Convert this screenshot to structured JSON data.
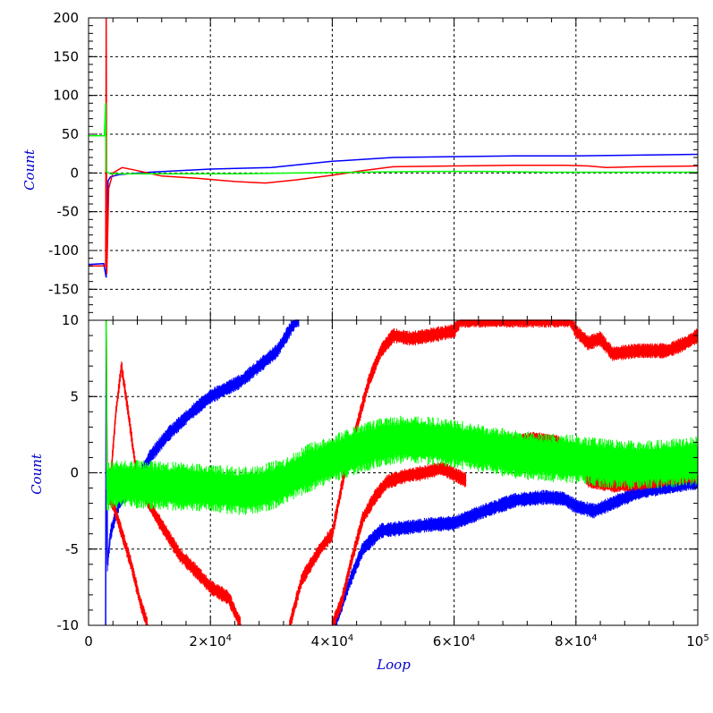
{
  "chart_data": [
    {
      "type": "line",
      "panel": "top",
      "ylabel": "Count",
      "xlabel": "",
      "xlim": [
        0,
        100000
      ],
      "ylim": [
        -190,
        200
      ],
      "yticks": [
        200,
        150,
        100,
        50,
        0,
        -50,
        -100,
        -150
      ],
      "ytick_labels": [
        "200",
        "150",
        "100",
        "50",
        "0",
        "-50",
        "-100",
        "-150"
      ],
      "grid": true,
      "series": [
        {
          "color": "#0000ff",
          "points": [
            [
              0,
              -118
            ],
            [
              2500,
              -117
            ],
            [
              2900,
              -135
            ],
            [
              3200,
              -10
            ],
            [
              3600,
              -5
            ],
            [
              5000,
              -2
            ],
            [
              10000,
              1
            ],
            [
              20000,
              5
            ],
            [
              30000,
              7
            ],
            [
              40000,
              15
            ],
            [
              50000,
              20
            ],
            [
              60000,
              21
            ],
            [
              70000,
              22
            ],
            [
              80000,
              22
            ],
            [
              100000,
              24
            ]
          ]
        },
        {
          "color": "#ff0000",
          "points": [
            [
              0,
              -120
            ],
            [
              2800,
              -120
            ],
            [
              2900,
              200
            ],
            [
              3000,
              -130
            ],
            [
              3300,
              -20
            ],
            [
              4000,
              0
            ],
            [
              5500,
              7
            ],
            [
              8000,
              3
            ],
            [
              12000,
              -4
            ],
            [
              18000,
              -7
            ],
            [
              24000,
              -11
            ],
            [
              29000,
              -13
            ],
            [
              34000,
              -9
            ],
            [
              40000,
              -3
            ],
            [
              45000,
              3
            ],
            [
              50000,
              8
            ],
            [
              60000,
              9
            ],
            [
              70000,
              10
            ],
            [
              78000,
              10
            ],
            [
              82000,
              9
            ],
            [
              85000,
              7
            ],
            [
              90000,
              8
            ],
            [
              100000,
              9
            ]
          ]
        },
        {
          "color": "#00ff00",
          "points": [
            [
              0,
              48
            ],
            [
              2600,
              48
            ],
            [
              2800,
              90
            ],
            [
              2900,
              2
            ],
            [
              3500,
              -1
            ],
            [
              8000,
              -1
            ],
            [
              15000,
              -1
            ],
            [
              25000,
              -1
            ],
            [
              35000,
              0
            ],
            [
              45000,
              1
            ],
            [
              55000,
              2
            ],
            [
              65000,
              2
            ],
            [
              75000,
              1
            ],
            [
              85000,
              1
            ],
            [
              100000,
              1
            ]
          ]
        }
      ]
    },
    {
      "type": "line",
      "panel": "bottom",
      "ylabel": "Count",
      "xlabel": "Loop",
      "xlim": [
        0,
        100000
      ],
      "ylim": [
        -10,
        10
      ],
      "yticks": [
        10,
        5,
        0,
        -5,
        -10
      ],
      "ytick_labels": [
        "10",
        "5",
        "0",
        "-5",
        "-10"
      ],
      "xticks": [
        0,
        20000,
        40000,
        60000,
        80000,
        100000
      ],
      "xtick_labels": [
        {
          "base": "0",
          "exp": ""
        },
        {
          "base": "2×10",
          "exp": "4"
        },
        {
          "base": "4×10",
          "exp": "4"
        },
        {
          "base": "6×10",
          "exp": "4"
        },
        {
          "base": "8×10",
          "exp": "4"
        },
        {
          "base": "10",
          "exp": "5"
        }
      ],
      "grid": true,
      "series": [
        {
          "color": "#0000ff",
          "band": 0.5,
          "points": [
            [
              2800,
              -10
            ],
            [
              2900,
              10
            ],
            [
              3100,
              -6
            ],
            [
              3600,
              -4
            ],
            [
              5000,
              -2
            ],
            [
              8000,
              -0.5
            ],
            [
              10000,
              1
            ],
            [
              13000,
              2.5
            ],
            [
              17000,
              4
            ],
            [
              20000,
              5
            ],
            [
              25000,
              6
            ],
            [
              28000,
              7
            ],
            [
              31000,
              8
            ],
            [
              34000,
              10
            ],
            [
              34600,
              10
            ]
          ]
        },
        {
          "color": "#0000ff",
          "band": 0.5,
          "points": [
            [
              40400,
              -10
            ],
            [
              43000,
              -7
            ],
            [
              45000,
              -5
            ],
            [
              48000,
              -3.8
            ],
            [
              52000,
              -3.6
            ],
            [
              56000,
              -3.4
            ],
            [
              60000,
              -3.3
            ],
            [
              65000,
              -2.5
            ],
            [
              70000,
              -1.8
            ],
            [
              75000,
              -1.6
            ],
            [
              78000,
              -1.7
            ],
            [
              80000,
              -2.2
            ],
            [
              83000,
              -2.5
            ],
            [
              86000,
              -2
            ],
            [
              90000,
              -1.3
            ],
            [
              95000,
              -0.9
            ],
            [
              100000,
              -0.6
            ]
          ]
        },
        {
          "color": "#ff0000",
          "band": 0.5,
          "points": [
            [
              2900,
              10
            ],
            [
              3050,
              -1
            ],
            [
              3700,
              0
            ],
            [
              4500,
              4
            ],
            [
              5400,
              7
            ],
            [
              6500,
              4
            ],
            [
              8000,
              -0.5
            ],
            [
              11000,
              -2.8
            ],
            [
              15000,
              -5.4
            ],
            [
              18000,
              -6.6
            ],
            [
              20000,
              -7.5
            ],
            [
              23000,
              -8.2
            ],
            [
              25000,
              -10
            ]
          ]
        },
        {
          "color": "#ff0000",
          "band": 0.5,
          "points": [
            [
              3000,
              -1.5
            ],
            [
              4000,
              -2
            ],
            [
              5500,
              -4
            ],
            [
              7000,
              -6
            ],
            [
              8500,
              -8.5
            ],
            [
              9700,
              -10
            ]
          ]
        },
        {
          "color": "#ff0000",
          "band": 0.5,
          "points": [
            [
              33000,
              -10
            ],
            [
              35000,
              -7
            ],
            [
              38000,
              -5
            ],
            [
              40000,
              -4
            ],
            [
              42000,
              0
            ],
            [
              44000,
              3
            ],
            [
              46000,
              6
            ],
            [
              48000,
              8
            ],
            [
              50000,
              9
            ],
            [
              53000,
              8.8
            ],
            [
              56000,
              9
            ],
            [
              60000,
              9.3
            ],
            [
              61000,
              10
            ],
            [
              66000,
              10
            ],
            [
              70000,
              10
            ],
            [
              74000,
              10
            ],
            [
              79000,
              10
            ],
            [
              80000,
              9.3
            ],
            [
              82000,
              8.5
            ],
            [
              84000,
              8.8
            ],
            [
              86000,
              7.8
            ],
            [
              90000,
              8
            ],
            [
              95000,
              8
            ],
            [
              98000,
              8.5
            ],
            [
              100000,
              9
            ]
          ]
        },
        {
          "color": "#ff0000",
          "band": 0.5,
          "points": [
            [
              40000,
              -10
            ],
            [
              41500,
              -8.5
            ],
            [
              43000,
              -6
            ],
            [
              45000,
              -3
            ],
            [
              47000,
              -1.6
            ],
            [
              49000,
              -0.6
            ],
            [
              52000,
              -0.2
            ],
            [
              55000,
              0
            ],
            [
              58000,
              0.3
            ],
            [
              62000,
              -0.5
            ]
          ]
        },
        {
          "color": "#ff0000",
          "band": 0.5,
          "points": [
            [
              65000,
              2
            ],
            [
              70000,
              2
            ],
            [
              73000,
              2.2
            ],
            [
              77000,
              2
            ],
            [
              79000,
              1
            ],
            [
              81000,
              0.3
            ],
            [
              82000,
              -0.5
            ],
            [
              86000,
              -0.8
            ],
            [
              90000,
              -0.7
            ],
            [
              95000,
              -0.4
            ],
            [
              100000,
              -0.2
            ]
          ]
        },
        {
          "color": "#00ff00",
          "band": 1.6,
          "points": [
            [
              2900,
              10
            ],
            [
              3000,
              -1
            ],
            [
              3600,
              -0.8
            ],
            [
              6000,
              -0.7
            ],
            [
              10000,
              -0.8
            ],
            [
              15000,
              -0.9
            ],
            [
              20000,
              -1
            ],
            [
              25000,
              -1.2
            ],
            [
              28000,
              -1.1
            ],
            [
              32000,
              -0.6
            ],
            [
              36000,
              0.3
            ],
            [
              40000,
              0.9
            ],
            [
              44000,
              1.5
            ],
            [
              48000,
              2
            ],
            [
              52000,
              2.2
            ],
            [
              56000,
              2.1
            ],
            [
              60000,
              1.9
            ],
            [
              66000,
              1.5
            ],
            [
              70000,
              1.2
            ],
            [
              75000,
              1
            ],
            [
              80000,
              0.9
            ],
            [
              85000,
              0.6
            ],
            [
              90000,
              0.5
            ],
            [
              95000,
              0.6
            ],
            [
              100000,
              0.8
            ]
          ]
        }
      ]
    }
  ]
}
